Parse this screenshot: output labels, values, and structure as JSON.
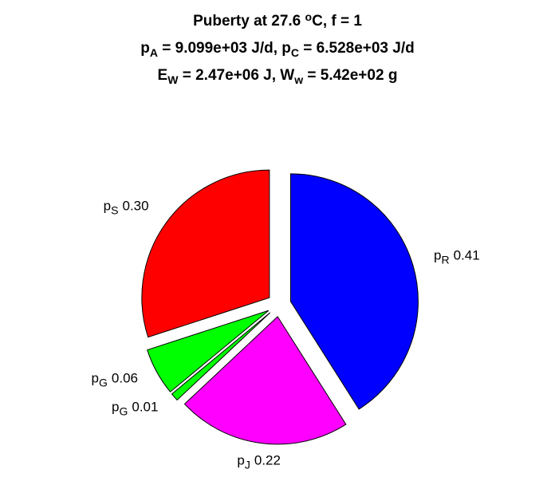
{
  "chart_data": {
    "type": "pie",
    "title": [
      [
        {
          "text": "Puberty at 27.6 "
        },
        {
          "sup": "o"
        },
        {
          "text": "C, f = 1"
        }
      ],
      [
        {
          "text": "p"
        },
        {
          "sub": "A"
        },
        {
          "text": " = 9.099e+03 J/d,  p"
        },
        {
          "sub": "C"
        },
        {
          "text": " = 6.528e+03 J/d"
        }
      ],
      [
        {
          "text": "E"
        },
        {
          "sub": "W"
        },
        {
          "text": " = 2.47e+06 J, W"
        },
        {
          "sub": "w"
        },
        {
          "text": " = 5.42e+02 g"
        }
      ]
    ],
    "categories": [
      {
        "main": "p",
        "sub": "R"
      },
      {
        "main": "p",
        "sub": "J"
      },
      {
        "main": "p",
        "sub": "G"
      },
      {
        "main": "p",
        "sub": "G"
      },
      {
        "main": "p",
        "sub": "S"
      }
    ],
    "values": [
      0.41,
      0.22,
      0.01,
      0.06,
      0.3
    ],
    "value_labels": [
      "0.41",
      "0.22",
      "0.01",
      "0.06",
      "0.30"
    ],
    "colors": [
      "#0000ff",
      "#ff00ff",
      "#00ff00",
      "#00ff00",
      "#ff0000"
    ],
    "direction": "clockwise",
    "start": "top"
  }
}
